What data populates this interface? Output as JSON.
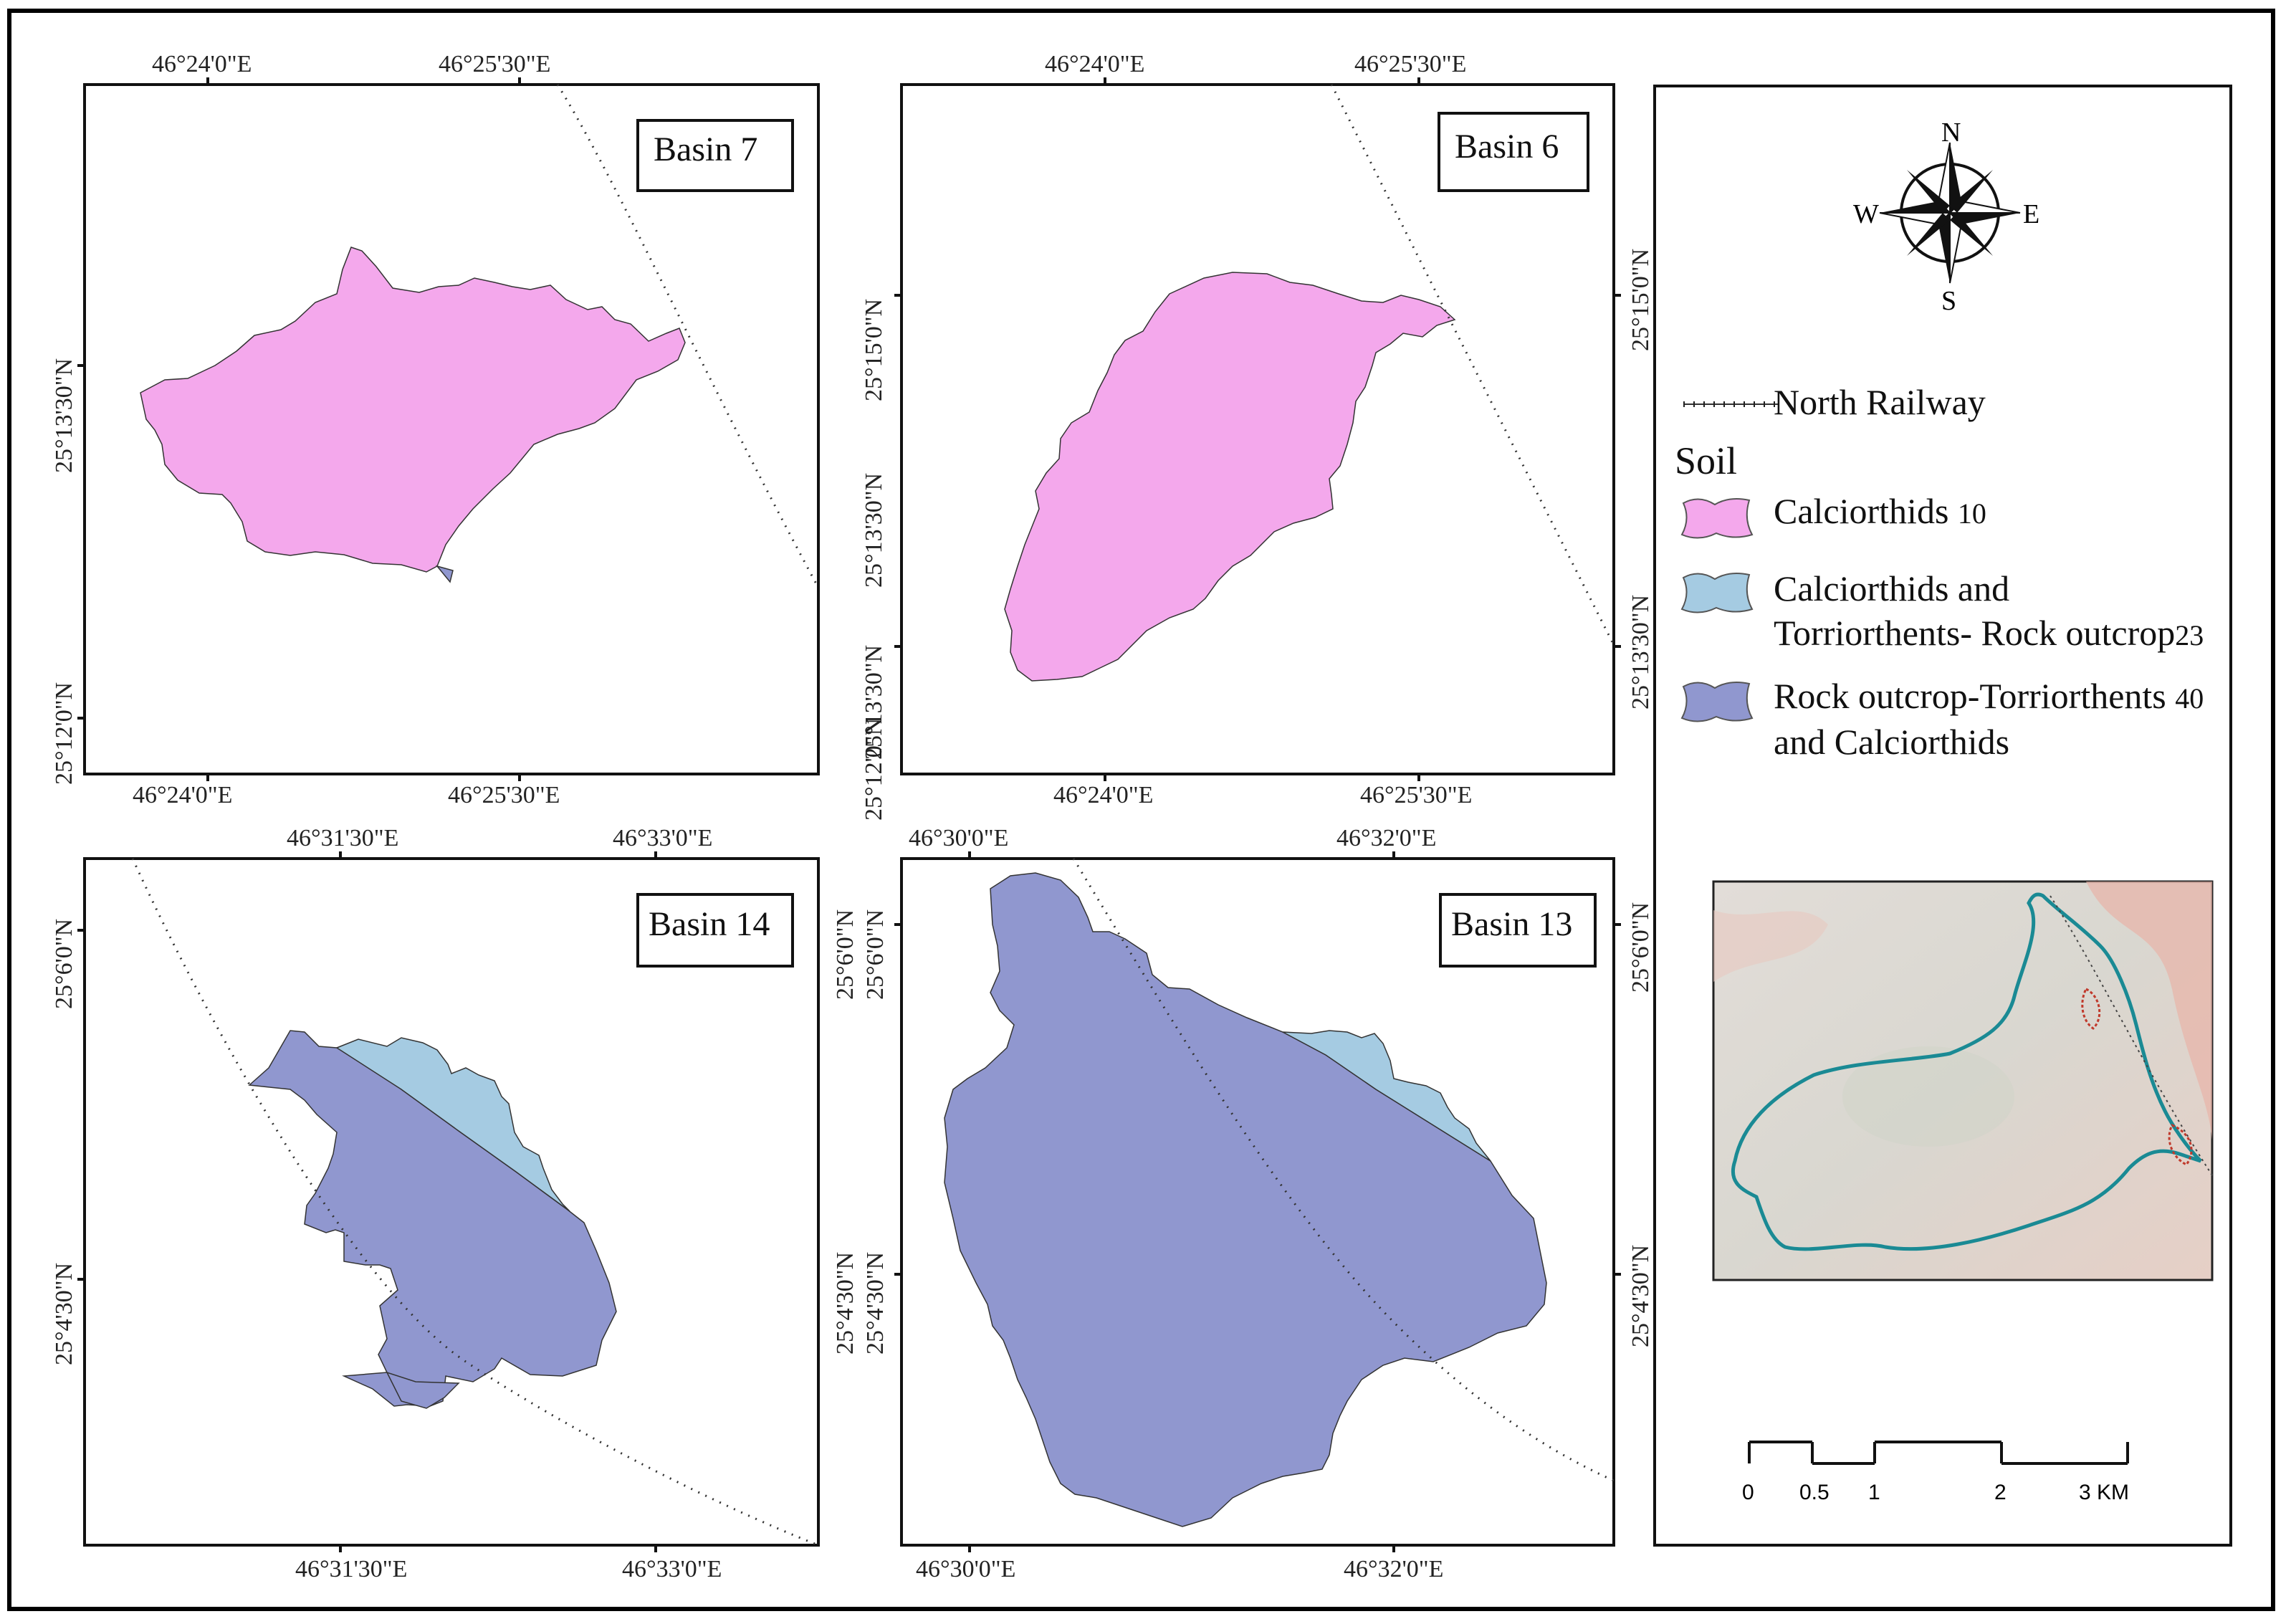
{
  "panels": [
    {
      "basin_label": "Basin 7",
      "top_labels": [
        "46°24'0\"E",
        "46°25'30\"E"
      ],
      "bottom_labels": [
        "46°24'0\"E",
        "46°25'30\"E"
      ],
      "left_labels": [
        "25°13'30\"N",
        "25°12'0\"N"
      ],
      "right_labels": []
    },
    {
      "basin_label": "Basin 6",
      "top_labels": [
        "46°24'0\"E",
        "46°25'30\"E"
      ],
      "bottom_labels": [
        "46°24'0\"E",
        "46°25'30\"E"
      ],
      "left_labels": [
        "25°15'0\"N",
        "25°13'30\"N",
        "25°13'30\"N",
        "25°12'0\"N"
      ],
      "right_labels": [
        "25°15'0\"N",
        "25°13'30\"N"
      ]
    },
    {
      "basin_label": "Basin 14",
      "top_labels": [
        "46°31'30\"E",
        "46°33'0\"E"
      ],
      "bottom_labels": [
        "46°31'30\"E",
        "46°33'0\"E"
      ],
      "left_labels": [
        "25°6'0\"N",
        "25°4'30\"N"
      ],
      "right_labels": []
    },
    {
      "basin_label": "Basin 13",
      "top_labels": [
        "46°30'0\"E",
        "46°32'0\"E"
      ],
      "bottom_labels": [
        "46°30'0\"E",
        "46°32'0\"E"
      ],
      "left_labels": [
        "25°6'0\"N",
        "25°6'0\"N",
        "25°4'30\"N",
        "25°4'30\"N"
      ],
      "right_labels": [
        "25°6'0\"N",
        "25°4'30\"N"
      ]
    }
  ],
  "legend": {
    "compass": {
      "n": "N",
      "s": "S",
      "e": "E",
      "w": "W"
    },
    "railway_label": "North Railway",
    "soil_title": "Soil",
    "soil_items": [
      {
        "line1": "Calciorthids",
        "line2": "",
        "code": "10",
        "color": "#f4a8ec"
      },
      {
        "line1": "Calciorthids and",
        "line2": "Torriorthents- Rock outcrop",
        "code": "23",
        "color": "#a5cbe2"
      },
      {
        "line1": "Rock outcrop-Torriorthents",
        "line2": "and Calciorthids",
        "code": "40",
        "color": "#9097cf"
      }
    ],
    "scale_labels": [
      "0",
      "0.5",
      "1",
      "2",
      "3 KM"
    ]
  }
}
